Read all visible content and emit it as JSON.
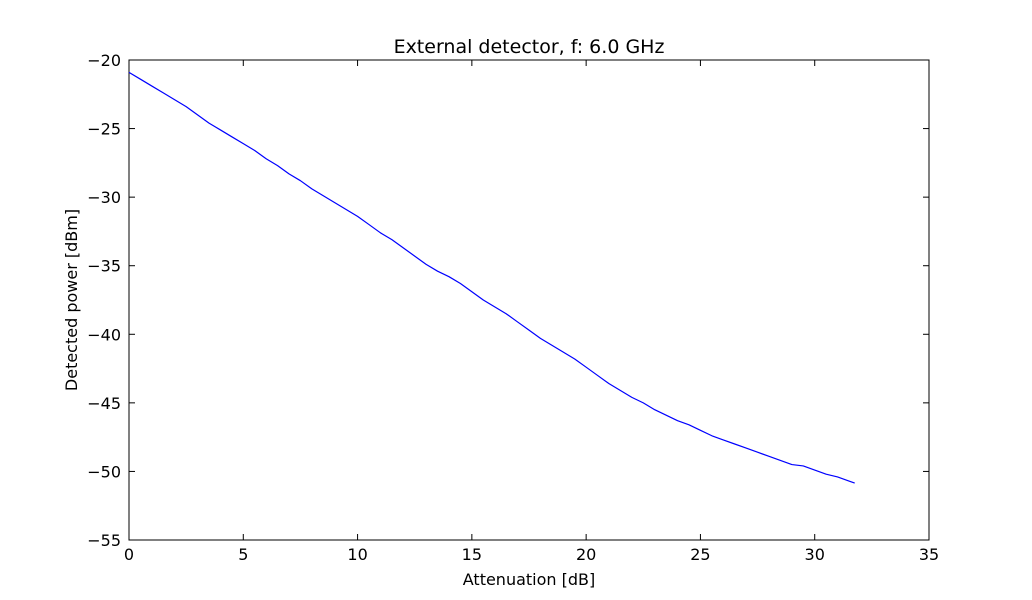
{
  "chart_data": {
    "type": "line",
    "title": "External detector, f: 6.0 GHz",
    "xlabel": "Attenuation [dB]",
    "ylabel": "Detected power [dBm]",
    "xlim": [
      0,
      35
    ],
    "ylim": [
      -55,
      -20
    ],
    "xticks": [
      0,
      5,
      10,
      15,
      20,
      25,
      30,
      35
    ],
    "yticks": [
      -20,
      -25,
      -30,
      -35,
      -40,
      -45,
      -50,
      -55
    ],
    "xtick_labels": [
      "0",
      "5",
      "10",
      "15",
      "20",
      "25",
      "30",
      "35"
    ],
    "ytick_labels": [
      "−20",
      "−25",
      "−30",
      "−35",
      "−40",
      "−45",
      "−50",
      "−55"
    ],
    "grid": false,
    "legend": "none",
    "series": [
      {
        "color": "#0000ff",
        "x": [
          0,
          0.5,
          1,
          1.5,
          2,
          2.5,
          3,
          3.5,
          4,
          4.5,
          5,
          5.5,
          6,
          6.5,
          7,
          7.5,
          8,
          8.5,
          9,
          9.5,
          10,
          10.5,
          11,
          11.5,
          12,
          12.5,
          13,
          13.5,
          14,
          14.5,
          15,
          15.5,
          16,
          16.5,
          17,
          17.5,
          18,
          18.5,
          19,
          19.5,
          20,
          20.5,
          21,
          21.5,
          22,
          22.5,
          23,
          23.5,
          24,
          24.5,
          25,
          25.5,
          26,
          26.5,
          27,
          27.5,
          28,
          28.5,
          29,
          29.5,
          30,
          30.5,
          31,
          31.5,
          31.75
        ],
        "y": [
          -20.9,
          -21.4,
          -21.9,
          -22.4,
          -22.9,
          -23.4,
          -24.0,
          -24.6,
          -25.1,
          -25.6,
          -26.1,
          -26.6,
          -27.2,
          -27.7,
          -28.3,
          -28.8,
          -29.4,
          -29.9,
          -30.4,
          -30.9,
          -31.4,
          -32.0,
          -32.6,
          -33.1,
          -33.7,
          -34.3,
          -34.9,
          -35.4,
          -35.8,
          -36.3,
          -36.9,
          -37.5,
          -38.0,
          -38.5,
          -39.1,
          -39.7,
          -40.3,
          -40.8,
          -41.3,
          -41.8,
          -42.4,
          -43.0,
          -43.6,
          -44.1,
          -44.6,
          -45.0,
          -45.5,
          -45.9,
          -46.3,
          -46.6,
          -47.0,
          -47.4,
          -47.7,
          -48.0,
          -48.3,
          -48.6,
          -48.9,
          -49.2,
          -49.5,
          -49.6,
          -49.9,
          -50.2,
          -50.4,
          -50.7,
          -50.85
        ]
      }
    ]
  }
}
